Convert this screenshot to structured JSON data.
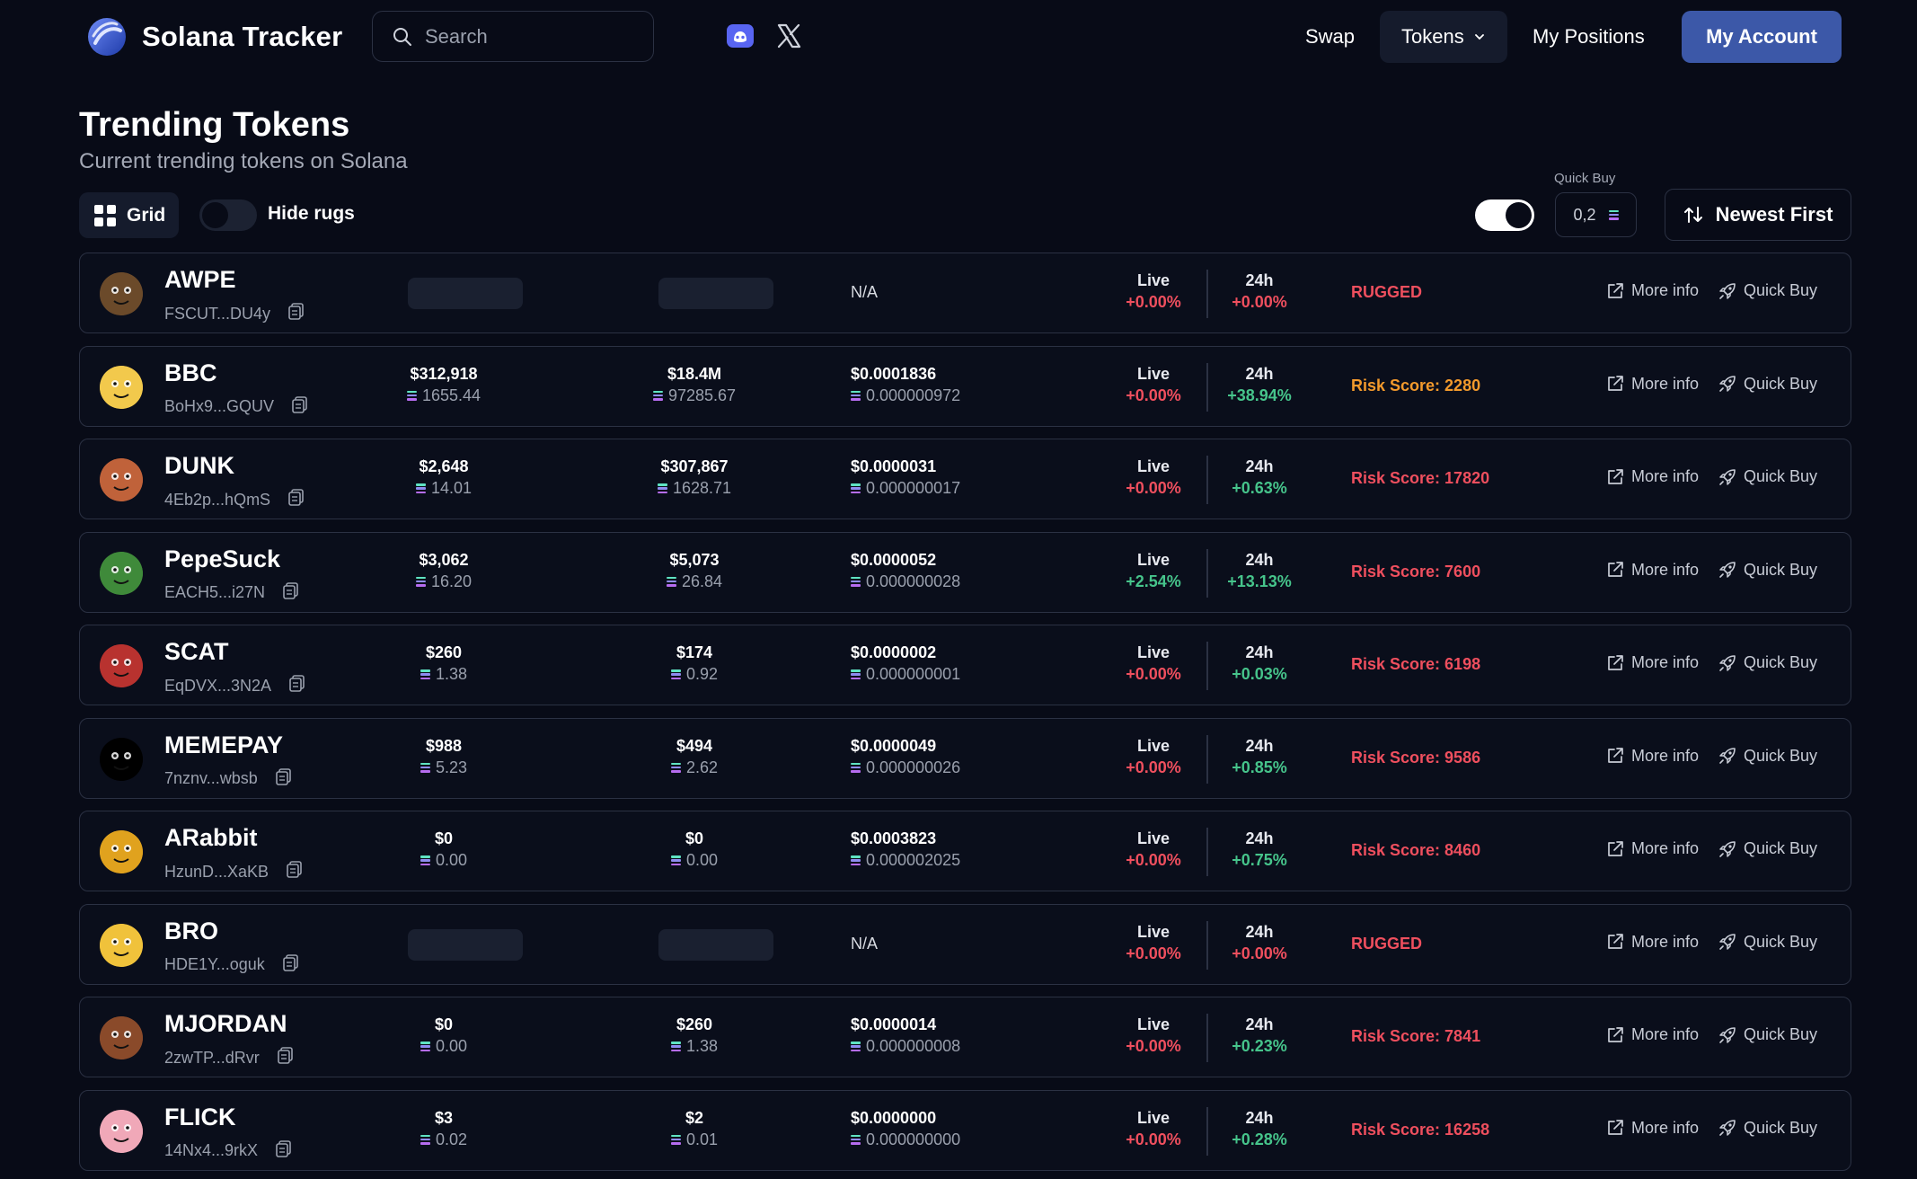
{
  "nav": {
    "brand": "Solana Tracker",
    "search_placeholder": "Search",
    "links": {
      "swap": "Swap",
      "tokens": "Tokens",
      "positions": "My Positions",
      "account": "My Account"
    },
    "icons": [
      "discord-icon",
      "x-icon",
      "search-icon",
      "chevron-down-icon"
    ]
  },
  "header": {
    "title": "Trending Tokens",
    "subtitle": "Current trending tokens on Solana",
    "grid_label": "Grid",
    "hide_rugs_label": "Hide rugs",
    "hide_rugs_on": false,
    "quick_buy_label": "Quick Buy",
    "quick_buy_amount": "0,2",
    "quick_buy_toggle_on": true,
    "sort_label": "Newest First"
  },
  "labels": {
    "live": "Live",
    "h24": "24h",
    "more_info": "More info",
    "quick_buy": "Quick Buy"
  },
  "colors": {
    "background": "#080b17",
    "accent": "#3c58a8",
    "negative": "#ef4f5e",
    "positive": "#46c48b",
    "warning": "#f39a2c"
  },
  "tokens": [
    {
      "symbol": "AWPE",
      "address": "FSCUT...DU4y",
      "liq_usd": null,
      "liq_sol": null,
      "mcap_usd": null,
      "mcap_sol": null,
      "price_usd": "N/A",
      "price_sol": null,
      "live": "+0.00%",
      "live_color": "red",
      "h24": "+0.00%",
      "h24_color": "red",
      "status": "RUGGED",
      "status_color": "red",
      "avatar_color": "#6b4a2a"
    },
    {
      "symbol": "BBC",
      "address": "BoHx9...GQUV",
      "liq_usd": "$312,918",
      "liq_sol": "1655.44",
      "mcap_usd": "$18.4M",
      "mcap_sol": "97285.67",
      "price_usd": "$0.0001836",
      "price_sol": "0.000000972",
      "live": "+0.00%",
      "live_color": "red",
      "h24": "+38.94%",
      "h24_color": "green",
      "status": "Risk Score: 2280",
      "status_color": "orange",
      "avatar_color": "#f2c94c"
    },
    {
      "symbol": "DUNK",
      "address": "4Eb2p...hQmS",
      "liq_usd": "$2,648",
      "liq_sol": "14.01",
      "mcap_usd": "$307,867",
      "mcap_sol": "1628.71",
      "price_usd": "$0.0000031",
      "price_sol": "0.000000017",
      "live": "+0.00%",
      "live_color": "red",
      "h24": "+0.63%",
      "h24_color": "green",
      "status": "Risk Score: 17820",
      "status_color": "red",
      "avatar_color": "#c0623a"
    },
    {
      "symbol": "PepeSuck",
      "address": "EACH5...i27N",
      "liq_usd": "$3,062",
      "liq_sol": "16.20",
      "mcap_usd": "$5,073",
      "mcap_sol": "26.84",
      "price_usd": "$0.0000052",
      "price_sol": "0.000000028",
      "live": "+2.54%",
      "live_color": "green",
      "h24": "+13.13%",
      "h24_color": "green",
      "status": "Risk Score: 7600",
      "status_color": "red",
      "avatar_color": "#3f8a3a"
    },
    {
      "symbol": "SCAT",
      "address": "EqDVX...3N2A",
      "liq_usd": "$260",
      "liq_sol": "1.38",
      "mcap_usd": "$174",
      "mcap_sol": "0.92",
      "price_usd": "$0.0000002",
      "price_sol": "0.000000001",
      "live": "+0.00%",
      "live_color": "red",
      "h24": "+0.03%",
      "h24_color": "green",
      "status": "Risk Score: 6198",
      "status_color": "red",
      "avatar_color": "#b8322f"
    },
    {
      "symbol": "MEMEPAY",
      "address": "7nznv...wbsb",
      "liq_usd": "$988",
      "liq_sol": "5.23",
      "mcap_usd": "$494",
      "mcap_sol": "2.62",
      "price_usd": "$0.0000049",
      "price_sol": "0.000000026",
      "live": "+0.00%",
      "live_color": "red",
      "h24": "+0.85%",
      "h24_color": "green",
      "status": "Risk Score: 9586",
      "status_color": "red",
      "avatar_color": "#000000"
    },
    {
      "symbol": "ARabbit",
      "address": "HzunD...XaKB",
      "liq_usd": "$0",
      "liq_sol": "0.00",
      "mcap_usd": "$0",
      "mcap_sol": "0.00",
      "price_usd": "$0.0003823",
      "price_sol": "0.000002025",
      "live": "+0.00%",
      "live_color": "red",
      "h24": "+0.75%",
      "h24_color": "green",
      "status": "Risk Score: 8460",
      "status_color": "red",
      "avatar_color": "#e0a21e"
    },
    {
      "symbol": "BRO",
      "address": "HDE1Y...oguk",
      "liq_usd": null,
      "liq_sol": null,
      "mcap_usd": null,
      "mcap_sol": null,
      "price_usd": "N/A",
      "price_sol": null,
      "live": "+0.00%",
      "live_color": "red",
      "h24": "+0.00%",
      "h24_color": "red",
      "status": "RUGGED",
      "status_color": "red",
      "avatar_color": "#f0c23b"
    },
    {
      "symbol": "MJORDAN",
      "address": "2zwTP...dRvr",
      "liq_usd": "$0",
      "liq_sol": "0.00",
      "mcap_usd": "$260",
      "mcap_sol": "1.38",
      "price_usd": "$0.0000014",
      "price_sol": "0.000000008",
      "live": "+0.00%",
      "live_color": "red",
      "h24": "+0.23%",
      "h24_color": "green",
      "status": "Risk Score: 7841",
      "status_color": "red",
      "avatar_color": "#8a4a2a"
    },
    {
      "symbol": "FLICK",
      "address": "14Nx4...9rkX",
      "liq_usd": "$3",
      "liq_sol": "0.02",
      "mcap_usd": "$2",
      "mcap_sol": "0.01",
      "price_usd": "$0.0000000",
      "price_sol": "0.000000000",
      "live": "+0.00%",
      "live_color": "red",
      "h24": "+0.28%",
      "h24_color": "green",
      "status": "Risk Score: 16258",
      "status_color": "red",
      "avatar_color": "#f0a8b8"
    }
  ]
}
